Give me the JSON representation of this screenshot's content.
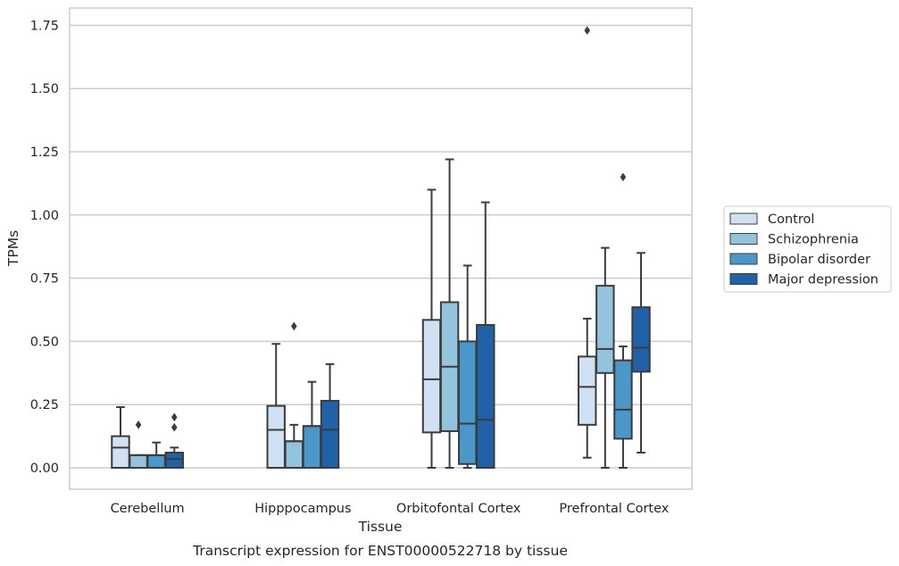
{
  "chart_data": {
    "type": "box",
    "title": "",
    "caption": "Transcript expression for ENST00000522718 by tissue",
    "xlabel": "Tissue",
    "ylabel": "TPMs",
    "ylim": [
      -0.085,
      1.82
    ],
    "yticks": [
      0.0,
      0.25,
      0.5,
      0.75,
      1.0,
      1.25,
      1.5,
      1.75
    ],
    "ytick_labels": [
      "0.00",
      "0.25",
      "0.50",
      "0.75",
      "1.00",
      "1.25",
      "1.50",
      "1.75"
    ],
    "grid": "horizontal",
    "legend_position": "right",
    "categories": [
      "Cerebellum",
      "Hipppocampus",
      "Orbitofontal Cortex",
      "Prefrontal Cortex"
    ],
    "series": [
      {
        "name": "Control",
        "color": "#cfe1f2",
        "boxes": [
          {
            "whisker_low": 0.0,
            "q1": 0.0,
            "median": 0.08,
            "q3": 0.125,
            "whisker_high": 0.24,
            "outliers": []
          },
          {
            "whisker_low": 0.0,
            "q1": 0.0,
            "median": 0.15,
            "q3": 0.245,
            "whisker_high": 0.49,
            "outliers": []
          },
          {
            "whisker_low": 0.0,
            "q1": 0.14,
            "median": 0.35,
            "q3": 0.585,
            "whisker_high": 1.1,
            "outliers": []
          },
          {
            "whisker_low": 0.04,
            "q1": 0.17,
            "median": 0.32,
            "q3": 0.44,
            "whisker_high": 0.59,
            "outliers": [
              1.73
            ]
          }
        ]
      },
      {
        "name": "Schizophrenia",
        "color": "#93c4de",
        "boxes": [
          {
            "whisker_low": 0.0,
            "q1": 0.0,
            "median": 0.05,
            "q3": 0.05,
            "whisker_high": 0.05,
            "outliers": [
              0.17
            ]
          },
          {
            "whisker_low": 0.0,
            "q1": 0.0,
            "median": 0.105,
            "q3": 0.105,
            "whisker_high": 0.17,
            "outliers": [
              0.56
            ]
          },
          {
            "whisker_low": 0.0,
            "q1": 0.145,
            "median": 0.4,
            "q3": 0.655,
            "whisker_high": 1.22,
            "outliers": []
          },
          {
            "whisker_low": 0.0,
            "q1": 0.375,
            "median": 0.47,
            "q3": 0.72,
            "whisker_high": 0.87,
            "outliers": []
          }
        ]
      },
      {
        "name": "Bipolar disorder",
        "color": "#4a98c9",
        "boxes": [
          {
            "whisker_low": 0.0,
            "q1": 0.0,
            "median": 0.05,
            "q3": 0.05,
            "whisker_high": 0.1,
            "outliers": []
          },
          {
            "whisker_low": 0.0,
            "q1": 0.0,
            "median": 0.165,
            "q3": 0.165,
            "whisker_high": 0.34,
            "outliers": []
          },
          {
            "whisker_low": 0.0,
            "q1": 0.015,
            "median": 0.175,
            "q3": 0.5,
            "whisker_high": 0.8,
            "outliers": []
          },
          {
            "whisker_low": 0.0,
            "q1": 0.115,
            "median": 0.23,
            "q3": 0.425,
            "whisker_high": 0.48,
            "outliers": [
              1.15
            ]
          }
        ]
      },
      {
        "name": "Major depression",
        "color": "#2062a8",
        "boxes": [
          {
            "whisker_low": 0.0,
            "q1": 0.0,
            "median": 0.035,
            "q3": 0.06,
            "whisker_high": 0.08,
            "outliers": [
              0.16,
              0.2
            ]
          },
          {
            "whisker_low": 0.0,
            "q1": 0.0,
            "median": 0.15,
            "q3": 0.265,
            "whisker_high": 0.41,
            "outliers": []
          },
          {
            "whisker_low": 0.0,
            "q1": 0.0,
            "median": 0.19,
            "q3": 0.565,
            "whisker_high": 1.05,
            "outliers": []
          },
          {
            "whisker_low": 0.06,
            "q1": 0.38,
            "median": 0.475,
            "q3": 0.635,
            "whisker_high": 0.85,
            "outliers": []
          }
        ]
      }
    ]
  }
}
